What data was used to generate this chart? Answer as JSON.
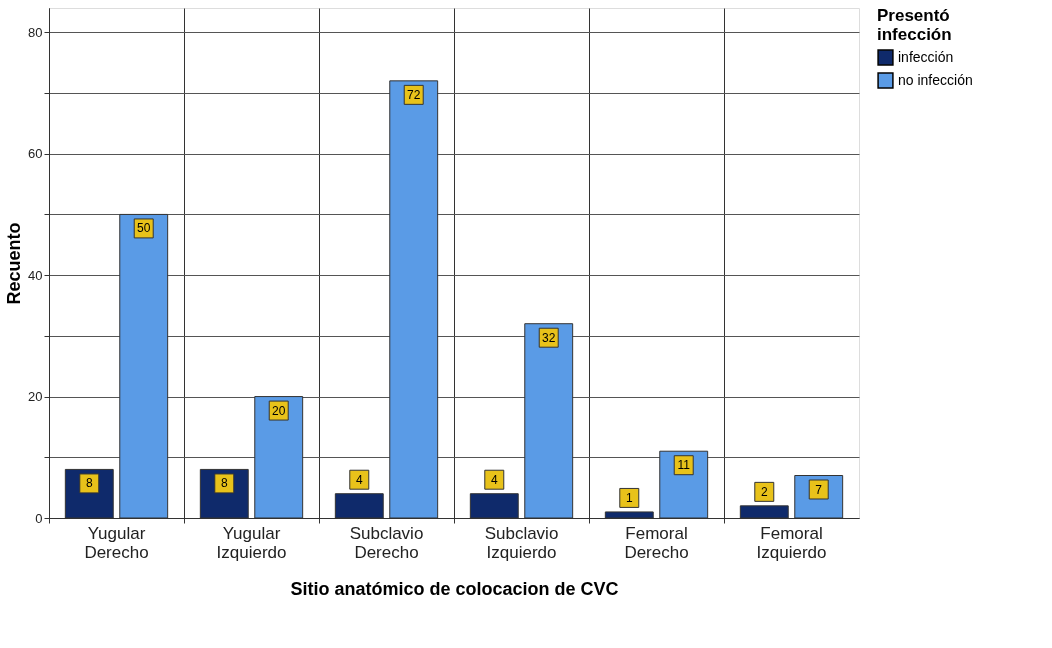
{
  "chart_data": {
    "type": "bar",
    "xlabel": "Sitio anatómico de colocacion de CVC",
    "ylabel": "Recuento",
    "legend_title": "Presentó infección",
    "categories": [
      "Yugular Derecho",
      "Yugular Izquierdo",
      "Subclavio Derecho",
      "Subclavio Izquierdo",
      "Femoral Derecho",
      "Femoral Izquierdo"
    ],
    "series": [
      {
        "name": "infección",
        "color": "#0f2a6b",
        "values": [
          8,
          8,
          4,
          4,
          1,
          2
        ]
      },
      {
        "name": "no infección",
        "color": "#5a9be6",
        "values": [
          50,
          20,
          72,
          32,
          11,
          7
        ]
      }
    ],
    "ylim": [
      0,
      84
    ],
    "yticks": [
      0,
      {
        "value": 10,
        "label": null
      },
      20,
      {
        "value": 30,
        "label": null
      },
      40,
      {
        "value": 50,
        "label": null
      },
      60,
      {
        "value": 70,
        "label": null
      },
      80
    ],
    "grid": true,
    "legend": "top right",
    "data_labels": true
  }
}
